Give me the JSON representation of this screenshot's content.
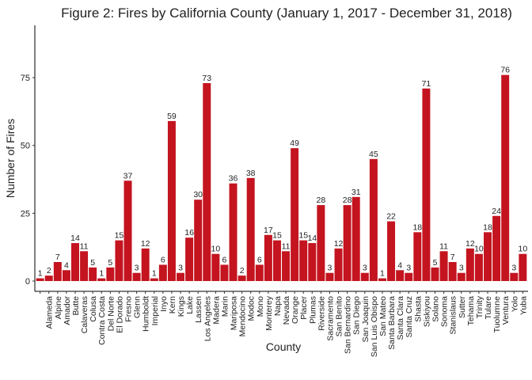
{
  "chart_data": {
    "type": "bar",
    "title": "Figure 2: Fires by California County (January 1, 2017 - December 31, 2018)",
    "x_label": "County",
    "y_label": "Number of Fires",
    "categories": [
      null,
      "Alameda",
      "Alpine",
      "Amador",
      "Butte",
      "Calaveras",
      "Colusa",
      "Contra Costa",
      "Del Norte",
      "El Dorado",
      "Fresno",
      "Glenn",
      "Humboldt",
      "Imperial",
      "Inyo",
      "Kern",
      "Kings",
      "Lake",
      "Lassen",
      "Los Angeles",
      "Madera",
      "Marin",
      "Mariposa",
      "Mendocino",
      "Modoc",
      "Mono",
      "Monterey",
      "Napa",
      "Nevada",
      "Orange",
      "Placer",
      "Plumas",
      "Riverside",
      "Sacramento",
      "San Benito",
      "San Bernardino",
      "San Diego",
      "San Joaquin",
      "San Luis Obispo",
      "San Mateo",
      "Santa Barbara",
      "Santa Clara",
      "Santa Cruz",
      "Shasta",
      "Siskiyou",
      "Solano",
      "Sonoma",
      "Stanislaus",
      "Sutter",
      "Tehama",
      "Trinity",
      "Tulare",
      "Tuolumne",
      "Ventura",
      "Yolo",
      "Yuba"
    ],
    "values": [
      1,
      2,
      7,
      4,
      14,
      11,
      5,
      1,
      5,
      15,
      37,
      3,
      12,
      1,
      6,
      59,
      3,
      16,
      30,
      73,
      10,
      6,
      36,
      2,
      38,
      6,
      17,
      15,
      11,
      49,
      15,
      14,
      28,
      3,
      12,
      28,
      31,
      3,
      45,
      1,
      22,
      4,
      3,
      18,
      71,
      5,
      11,
      7,
      3,
      12,
      10,
      18,
      24,
      76,
      3,
      10
    ],
    "color": "#c4141f",
    "ylim": [
      -3.8,
      94.3
    ],
    "yticks": [
      0,
      25,
      50,
      75
    ],
    "grid": false
  }
}
